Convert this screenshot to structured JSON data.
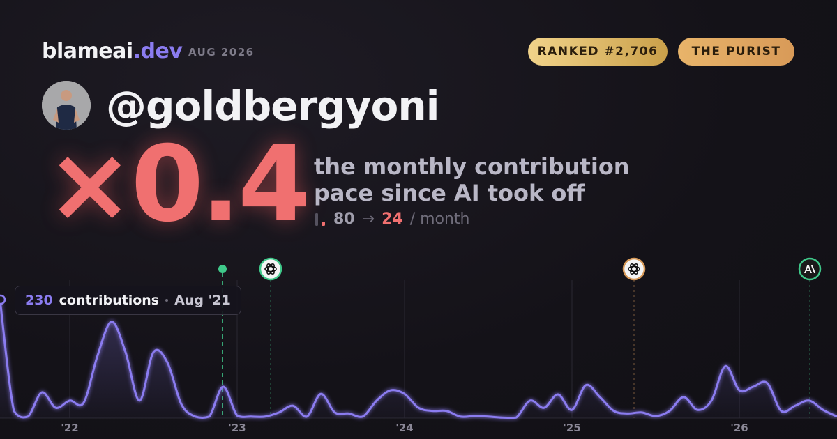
{
  "header": {
    "brand": "blameai",
    "brand_suffix": ".dev",
    "period": "AUG 2026",
    "rank_badge": "RANKED #2,706",
    "persona_badge": "THE PURIST",
    "handle": "@goldbergyoni"
  },
  "headline": {
    "multiplier": "×0.4",
    "description_line1": "the monthly contribution",
    "description_line2": "pace since AI took off",
    "before": 80,
    "arrow": "→",
    "after": 24,
    "unit": "/ month"
  },
  "chart_data": {
    "type": "line",
    "categories": [
      null,
      null,
      null,
      null,
      null,
      "'22",
      null,
      null,
      null,
      null,
      null,
      null,
      null,
      null,
      null,
      null,
      null,
      "'23",
      null,
      null,
      null,
      null,
      null,
      null,
      null,
      null,
      null,
      null,
      null,
      "'24",
      null,
      null,
      null,
      null,
      null,
      null,
      null,
      null,
      null,
      null,
      null,
      "'25",
      null,
      null,
      null,
      null,
      null,
      null,
      null,
      null,
      null,
      null,
      null,
      "'26",
      null,
      null,
      null,
      null,
      null,
      null,
      null
    ],
    "series": [
      {
        "name": "contributions",
        "color": "#8b7cf0",
        "values": [
          230,
          14,
          3,
          50,
          20,
          34,
          30,
          122,
          187,
          128,
          34,
          128,
          108,
          27,
          3,
          3,
          61,
          5,
          3,
          3,
          11,
          24,
          3,
          47,
          11,
          9,
          3,
          34,
          54,
          47,
          20,
          14,
          14,
          3,
          4,
          3,
          1,
          1,
          34,
          20,
          46,
          16,
          64,
          41,
          14,
          9,
          11,
          4,
          14,
          41,
          16,
          34,
          101,
          54,
          61,
          68,
          14,
          24,
          34,
          16,
          3
        ]
      }
    ],
    "ylim": [
      0,
      230
    ],
    "tooltip": {
      "label": "contributions",
      "date": "Aug '21"
    }
  }
}
